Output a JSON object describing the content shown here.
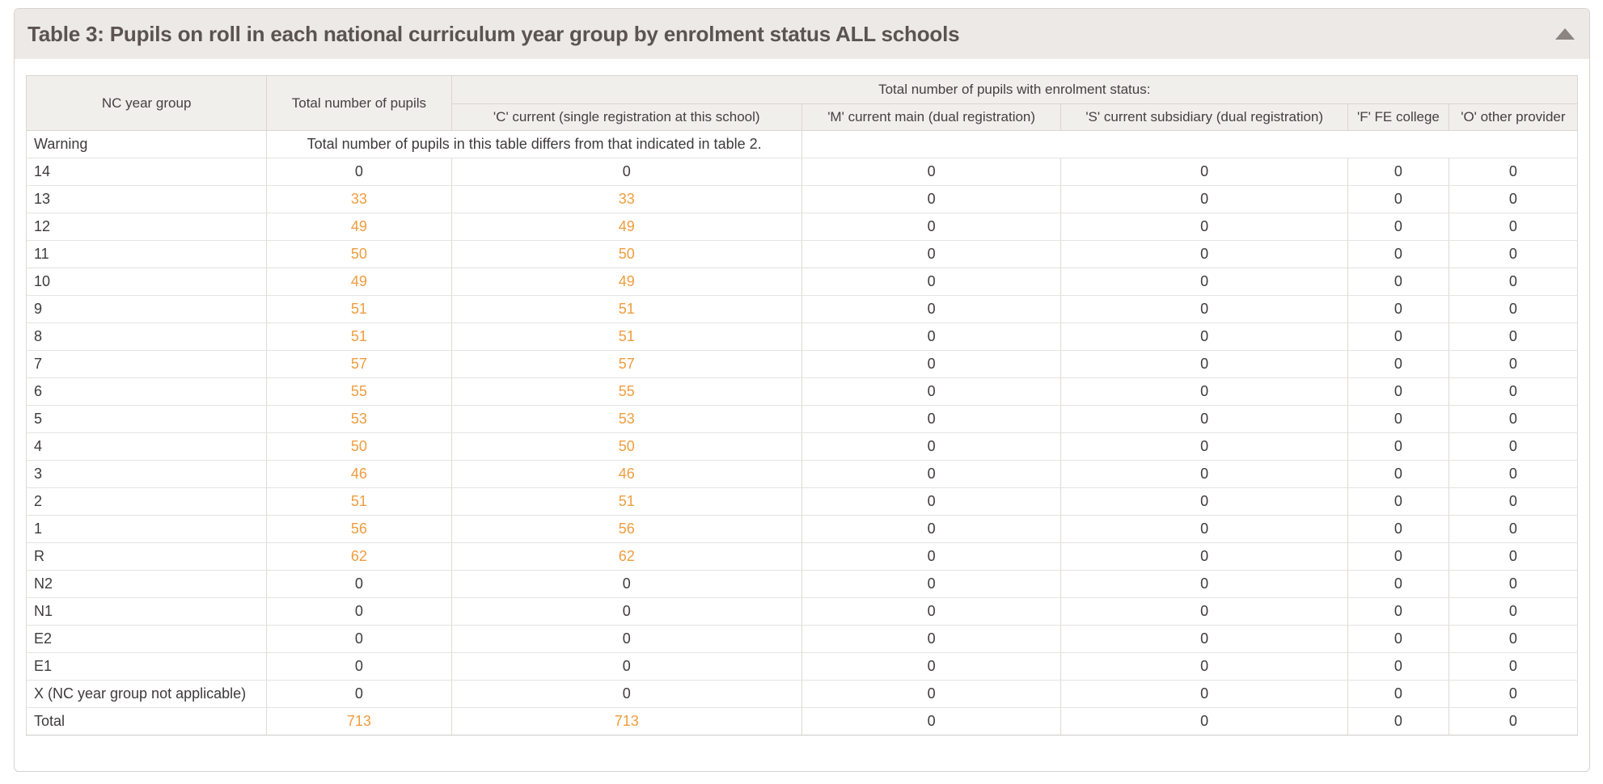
{
  "panel": {
    "title": "Table 3: Pupils on roll in each national curriculum year group by enrolment status ALL schools",
    "collapse_icon": "triangle-up"
  },
  "table": {
    "header": {
      "nc_year_group": "NC year group",
      "total_pupils": "Total number of pupils",
      "status_group": "Total number of pupils with enrolment status:",
      "status_columns": [
        "'C' current (single registration at this school)",
        "'M' current main (dual registration)",
        "'S' current subsidiary (dual registration)",
        "'F' FE college",
        "'O' other provider"
      ]
    },
    "warning": {
      "label": "Warning",
      "message": "Total number of pupils in this table differs from that indicated in table 2."
    },
    "column_keys": [
      "total",
      "c",
      "m",
      "s",
      "f",
      "o"
    ],
    "rows": [
      {
        "year_group": "14",
        "total": 0,
        "c": 0,
        "m": 0,
        "s": 0,
        "f": 0,
        "o": 0
      },
      {
        "year_group": "13",
        "total": 33,
        "c": 33,
        "m": 0,
        "s": 0,
        "f": 0,
        "o": 0
      },
      {
        "year_group": "12",
        "total": 49,
        "c": 49,
        "m": 0,
        "s": 0,
        "f": 0,
        "o": 0
      },
      {
        "year_group": "11",
        "total": 50,
        "c": 50,
        "m": 0,
        "s": 0,
        "f": 0,
        "o": 0
      },
      {
        "year_group": "10",
        "total": 49,
        "c": 49,
        "m": 0,
        "s": 0,
        "f": 0,
        "o": 0
      },
      {
        "year_group": "9",
        "total": 51,
        "c": 51,
        "m": 0,
        "s": 0,
        "f": 0,
        "o": 0
      },
      {
        "year_group": "8",
        "total": 51,
        "c": 51,
        "m": 0,
        "s": 0,
        "f": 0,
        "o": 0
      },
      {
        "year_group": "7",
        "total": 57,
        "c": 57,
        "m": 0,
        "s": 0,
        "f": 0,
        "o": 0
      },
      {
        "year_group": "6",
        "total": 55,
        "c": 55,
        "m": 0,
        "s": 0,
        "f": 0,
        "o": 0
      },
      {
        "year_group": "5",
        "total": 53,
        "c": 53,
        "m": 0,
        "s": 0,
        "f": 0,
        "o": 0
      },
      {
        "year_group": "4",
        "total": 50,
        "c": 50,
        "m": 0,
        "s": 0,
        "f": 0,
        "o": 0
      },
      {
        "year_group": "3",
        "total": 46,
        "c": 46,
        "m": 0,
        "s": 0,
        "f": 0,
        "o": 0
      },
      {
        "year_group": "2",
        "total": 51,
        "c": 51,
        "m": 0,
        "s": 0,
        "f": 0,
        "o": 0
      },
      {
        "year_group": "1",
        "total": 56,
        "c": 56,
        "m": 0,
        "s": 0,
        "f": 0,
        "o": 0
      },
      {
        "year_group": "R",
        "total": 62,
        "c": 62,
        "m": 0,
        "s": 0,
        "f": 0,
        "o": 0
      },
      {
        "year_group": "N2",
        "total": 0,
        "c": 0,
        "m": 0,
        "s": 0,
        "f": 0,
        "o": 0
      },
      {
        "year_group": "N1",
        "total": 0,
        "c": 0,
        "m": 0,
        "s": 0,
        "f": 0,
        "o": 0
      },
      {
        "year_group": "E2",
        "total": 0,
        "c": 0,
        "m": 0,
        "s": 0,
        "f": 0,
        "o": 0
      },
      {
        "year_group": "E1",
        "total": 0,
        "c": 0,
        "m": 0,
        "s": 0,
        "f": 0,
        "o": 0
      },
      {
        "year_group": "X (NC year group not applicable)",
        "total": 0,
        "c": 0,
        "m": 0,
        "s": 0,
        "f": 0,
        "o": 0
      },
      {
        "year_group": "Total",
        "total": 713,
        "c": 713,
        "m": 0,
        "s": 0,
        "f": 0,
        "o": 0,
        "is_total": true
      }
    ]
  },
  "colors": {
    "accent_orange": "#ef9d3e",
    "panel_header_bg": "#ece9e6",
    "header_cell_bg": "#f1efec",
    "title_text": "#5b5352",
    "border": "#d7d3d0"
  }
}
